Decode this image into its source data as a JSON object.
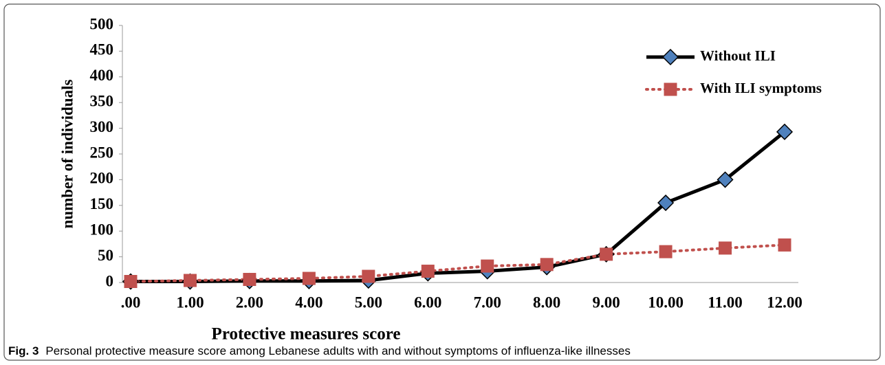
{
  "chart_data": {
    "type": "line",
    "x_label": "Protective measures score",
    "y_label": "number of individuals",
    "categories": [
      ".00",
      "1.00",
      "2.00",
      "4.00",
      "5.00",
      "6.00",
      "7.00",
      "8.00",
      "9.00",
      "10.00",
      "11.00",
      "12.00"
    ],
    "series": [
      {
        "name": "Without ILI",
        "color": "#000000",
        "marker_color": "#4f81bd",
        "marker": "diamond",
        "line_style": "solid",
        "values": [
          2,
          2,
          3,
          3,
          4,
          18,
          22,
          30,
          55,
          155,
          200,
          293
        ]
      },
      {
        "name": "With ILI symptoms",
        "color": "#c0504d",
        "marker_color": "#c0504d",
        "marker": "square",
        "line_style": "dotted",
        "values": [
          2,
          4,
          6,
          8,
          12,
          22,
          32,
          35,
          55,
          60,
          67,
          73
        ]
      }
    ],
    "ylim": [
      0,
      500
    ],
    "yticks": [
      0,
      50,
      100,
      150,
      200,
      250,
      300,
      350,
      400,
      450,
      500
    ],
    "grid": false,
    "legend": "upper right"
  },
  "caption": {
    "label": "Fig. 3",
    "text": "Personal protective measure score among Lebanese adults with and without symptoms of influenza-like illnesses"
  }
}
